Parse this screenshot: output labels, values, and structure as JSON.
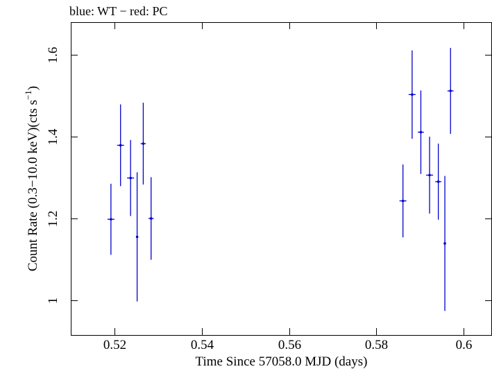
{
  "chart_data": {
    "type": "scatter",
    "title": "blue: WT − red: PC",
    "xlabel": "Time Since 57058.0 MJD (days)",
    "ylabel": {
      "prefix": "Count Rate (0.3−10.0 keV)(cts s",
      "superscript": "−1",
      "suffix": ")"
    },
    "xlim": [
      0.51,
      0.6065
    ],
    "ylim": [
      0.915,
      1.68
    ],
    "xticks": [
      0.52,
      0.54,
      0.56,
      0.58,
      0.6
    ],
    "xtick_labels": [
      "0.52",
      "0.54",
      "0.56",
      "0.58",
      "0.6"
    ],
    "yticks": [
      1.0,
      1.2,
      1.4,
      1.6
    ],
    "ytick_labels": [
      "1",
      "1.2",
      "1.4",
      "1.6"
    ],
    "grid": false,
    "colors": {
      "WT": "#0000cc",
      "axes": "#000000"
    },
    "series": [
      {
        "name": "WT",
        "points": [
          {
            "x": 0.5192,
            "xerr": 0.0008,
            "y": 1.198,
            "yerr": 0.087
          },
          {
            "x": 0.5214,
            "xerr": 0.0008,
            "y": 1.379,
            "yerr": 0.1
          },
          {
            "x": 0.5237,
            "xerr": 0.0008,
            "y": 1.299,
            "yerr": 0.093
          },
          {
            "x": 0.5252,
            "xerr": 0.0001,
            "y": 1.155,
            "yerr": 0.158
          },
          {
            "x": 0.5266,
            "xerr": 0.0006,
            "y": 1.383,
            "yerr": 0.1
          },
          {
            "x": 0.5284,
            "xerr": 0.0006,
            "y": 1.2,
            "yerr": 0.101
          },
          {
            "x": 0.5861,
            "xerr": 0.0008,
            "y": 1.243,
            "yerr": 0.089
          },
          {
            "x": 0.5882,
            "xerr": 0.0008,
            "y": 1.503,
            "yerr": 0.108
          },
          {
            "x": 0.5902,
            "xerr": 0.0007,
            "y": 1.411,
            "yerr": 0.102
          },
          {
            "x": 0.5922,
            "xerr": 0.0008,
            "y": 1.306,
            "yerr": 0.094
          },
          {
            "x": 0.5942,
            "xerr": 0.0007,
            "y": 1.29,
            "yerr": 0.093
          },
          {
            "x": 0.5957,
            "xerr": 0.0001,
            "y": 1.139,
            "yerr": 0.165
          },
          {
            "x": 0.597,
            "xerr": 0.0007,
            "y": 1.512,
            "yerr": 0.105
          }
        ]
      }
    ]
  }
}
